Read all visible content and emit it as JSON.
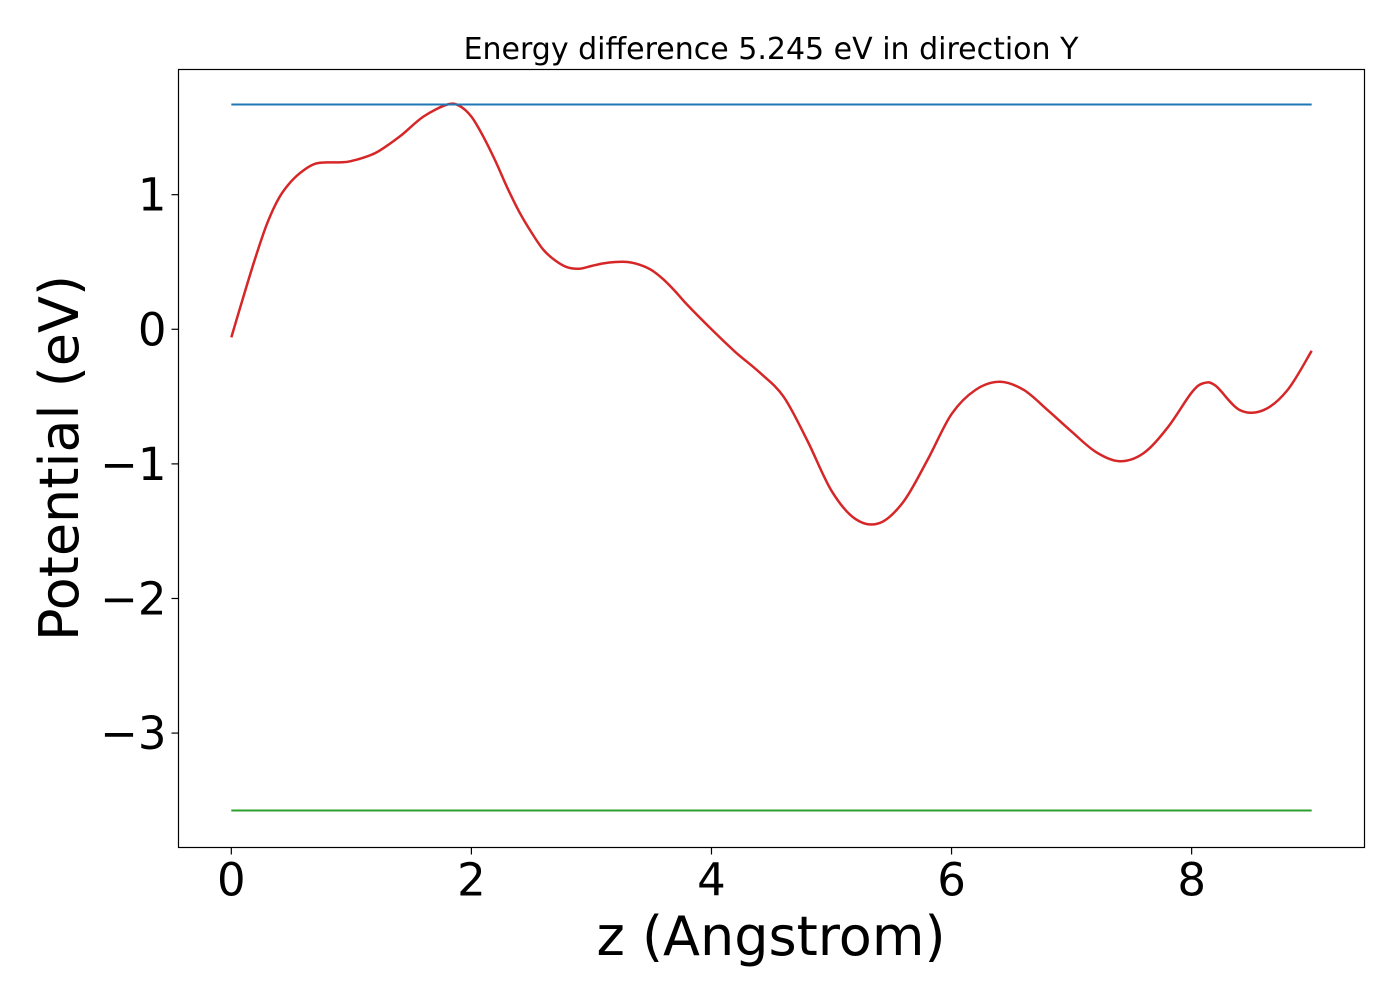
{
  "chart_data": {
    "type": "line",
    "title": "Energy difference 5.245 eV in direction Y",
    "xlabel": "z (Angstrom)",
    "ylabel": "Potential (eV)",
    "xlim": [
      -0.44,
      9.44
    ],
    "ylim": [
      -3.85,
      1.93
    ],
    "x_ticks": [
      0,
      2,
      4,
      6,
      8
    ],
    "x_tick_labels": [
      "0",
      "2",
      "4",
      "6",
      "8"
    ],
    "y_ticks": [
      -3,
      -2,
      -1,
      0,
      1
    ],
    "y_tick_labels": [
      "−3",
      "−2",
      "−1",
      "0",
      "1"
    ],
    "grid": false,
    "legend": "none",
    "series": [
      {
        "color": "#d62728",
        "x": [
          0,
          0.1,
          0.2,
          0.3,
          0.4,
          0.5,
          0.6,
          0.7,
          0.8,
          0.9,
          1.0,
          1.2,
          1.4,
          1.6,
          1.8,
          1.9,
          2.0,
          2.1,
          2.2,
          2.3,
          2.4,
          2.5,
          2.6,
          2.7,
          2.8,
          2.9,
          3.0,
          3.1,
          3.2,
          3.3,
          3.4,
          3.5,
          3.6,
          3.7,
          3.8,
          4.0,
          4.2,
          4.4,
          4.6,
          4.8,
          5.0,
          5.2,
          5.4,
          5.6,
          5.8,
          6.0,
          6.2,
          6.4,
          6.6,
          6.8,
          7.0,
          7.2,
          7.4,
          7.6,
          7.8,
          8.0,
          8.1,
          8.2,
          8.4,
          8.6,
          8.8,
          9.0
        ],
        "y": [
          -0.06,
          0.24,
          0.53,
          0.79,
          0.98,
          1.1,
          1.18,
          1.23,
          1.24,
          1.24,
          1.25,
          1.31,
          1.43,
          1.58,
          1.67,
          1.66,
          1.58,
          1.43,
          1.25,
          1.05,
          0.87,
          0.72,
          0.59,
          0.51,
          0.46,
          0.45,
          0.47,
          0.49,
          0.5,
          0.5,
          0.48,
          0.44,
          0.37,
          0.28,
          0.18,
          0.0,
          -0.17,
          -0.32,
          -0.5,
          -0.83,
          -1.2,
          -1.41,
          -1.44,
          -1.28,
          -0.97,
          -0.63,
          -0.45,
          -0.39,
          -0.45,
          -0.6,
          -0.76,
          -0.91,
          -0.98,
          -0.92,
          -0.73,
          -0.47,
          -0.4,
          -0.42,
          -0.6,
          -0.6,
          -0.45,
          -0.16
        ]
      },
      {
        "color": "#1f77b4",
        "x": [
          0,
          9.0
        ],
        "y": [
          1.67,
          1.67
        ]
      },
      {
        "color": "#2ca02c",
        "x": [
          0,
          9.0
        ],
        "y": [
          -3.575,
          -3.575
        ]
      }
    ]
  }
}
